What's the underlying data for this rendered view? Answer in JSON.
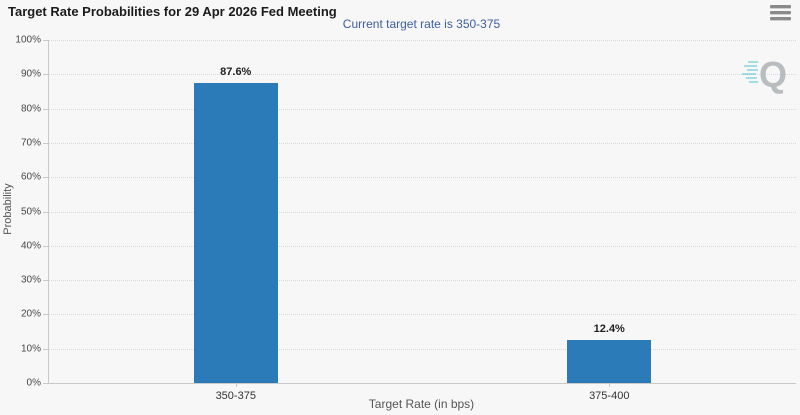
{
  "header": {
    "menu_icon": "hamburger-menu"
  },
  "watermark": {
    "letter": "Q"
  },
  "colors": {
    "background": "#f7f7f8",
    "bar": "#2b7bb9",
    "subtitle": "#3d5e9e",
    "gridline": "#d8d8d8",
    "axis_line": "#c9c9c9",
    "watermark_gray": "#b5babd",
    "watermark_teal": "#49c5cf"
  },
  "chart_data": {
    "type": "bar",
    "title": "Target Rate Probabilities for 29 Apr 2026 Fed Meeting",
    "subtitle": "Current target rate is 350-375",
    "categories": [
      "350-375",
      "375-400"
    ],
    "values": [
      87.6,
      12.4
    ],
    "value_labels": [
      "87.6%",
      "12.4%"
    ],
    "xlabel": "Target Rate (in bps)",
    "ylabel": "Probability",
    "ylim": [
      0,
      100
    ],
    "ytick_step": 10,
    "ytick_suffix": "%",
    "grid": "dotted-horizontal",
    "legend_position": "none",
    "bar_color": "#2b7bb9"
  }
}
